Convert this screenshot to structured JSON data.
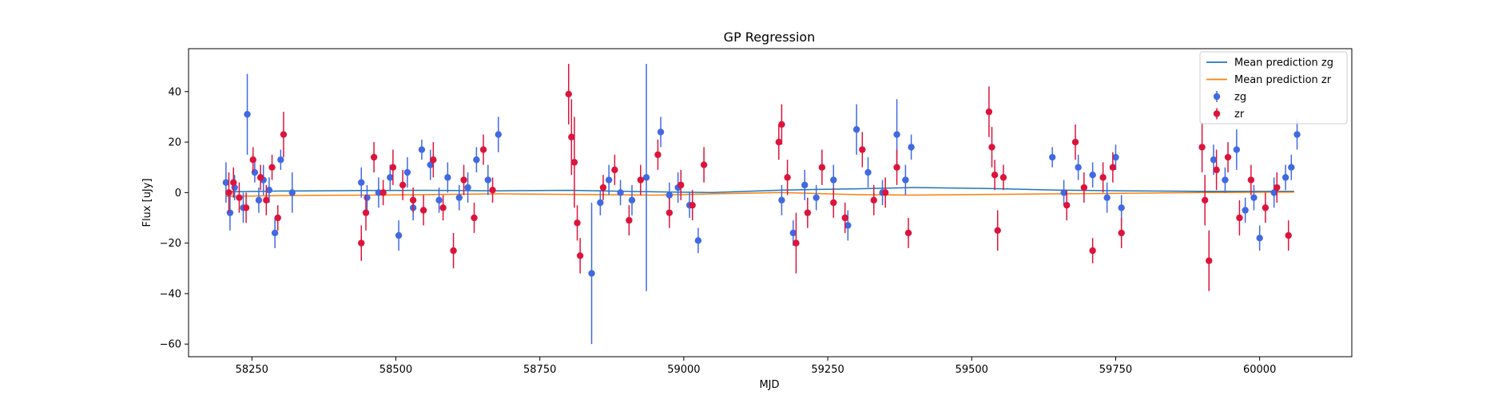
{
  "chart_data": {
    "type": "scatter",
    "title": "GP Regression",
    "xlabel": "MJD",
    "ylabel": "Flux [uJy]",
    "xlim": [
      58140,
      60160
    ],
    "ylim": [
      -65,
      57
    ],
    "xticks": [
      58250,
      58500,
      58750,
      59000,
      59250,
      59500,
      59750,
      60000
    ],
    "yticks": [
      -60,
      -40,
      -20,
      0,
      20,
      40
    ],
    "grid": false,
    "legend_position": "top-right",
    "legend": [
      {
        "label": "Mean prediction zg",
        "kind": "line",
        "color": "#1f77b4"
      },
      {
        "label": "Mean prediction zr",
        "kind": "line",
        "color": "#ff7f0e"
      },
      {
        "label": "zg",
        "kind": "errorbar",
        "color": "#4169e1"
      },
      {
        "label": "zr",
        "kind": "errorbar",
        "color": "#dc143c"
      }
    ],
    "lines": [
      {
        "name": "Mean prediction zg",
        "color": "#1f77b4",
        "x": [
          58205,
          58300,
          58440,
          58550,
          58680,
          58800,
          58950,
          59050,
          59170,
          59300,
          59400,
          59530,
          59650,
          59760,
          59900,
          60060
        ],
        "y": [
          0.3,
          0.6,
          0.8,
          0.9,
          0.7,
          0.9,
          0.3,
          0.0,
          1.0,
          1.5,
          2.0,
          1.6,
          1.0,
          0.7,
          0.5,
          0.5
        ]
      },
      {
        "name": "Mean prediction zr",
        "color": "#ff7f0e",
        "x": [
          58205,
          58300,
          58440,
          58550,
          58680,
          58800,
          58950,
          59050,
          59170,
          59300,
          59400,
          59530,
          59650,
          59760,
          59900,
          60060
        ],
        "y": [
          -1.5,
          -1.2,
          -1.0,
          -0.8,
          -0.5,
          -0.7,
          -1.0,
          -0.5,
          0.0,
          -0.8,
          -1.0,
          -0.7,
          -0.5,
          -0.3,
          0.0,
          0.2
        ]
      }
    ],
    "series": [
      {
        "name": "zg",
        "color": "#4169e1",
        "x": [
          58205,
          58212,
          58220,
          58235,
          58242,
          58255,
          58262,
          58270,
          58280,
          58290,
          58300,
          58320,
          58440,
          58450,
          58470,
          58490,
          58505,
          58520,
          58530,
          58545,
          58560,
          58575,
          58590,
          58610,
          58625,
          58640,
          58660,
          58678,
          58840,
          58855,
          58870,
          58890,
          58910,
          58935,
          58960,
          58975,
          58990,
          59010,
          59025,
          59170,
          59190,
          59210,
          59230,
          59260,
          59285,
          59300,
          59320,
          59345,
          59370,
          59385,
          59395,
          59640,
          59660,
          59685,
          59710,
          59735,
          59750,
          59760,
          59920,
          59940,
          59960,
          59975,
          59990,
          60000,
          60025,
          60045,
          60055,
          60065
        ],
        "y": [
          4,
          -8,
          2,
          -6,
          31,
          8,
          -3,
          5,
          1,
          -16,
          13,
          0,
          4,
          -2,
          0,
          6,
          -17,
          8,
          -6,
          17,
          11,
          -3,
          6,
          -2,
          2,
          13,
          5,
          23,
          -32,
          -4,
          5,
          0,
          -3,
          6,
          24,
          -1,
          2,
          -5,
          -19,
          -3,
          -16,
          3,
          -2,
          5,
          -13,
          25,
          8,
          0,
          23,
          5,
          18,
          14,
          0,
          10,
          7,
          -2,
          14,
          -6,
          13,
          5,
          17,
          -7,
          -2,
          -18,
          0,
          6,
          10,
          23
        ],
        "err": [
          8,
          7,
          5,
          6,
          16,
          4,
          5,
          6,
          5,
          6,
          4,
          8,
          6,
          5,
          6,
          5,
          6,
          6,
          5,
          4,
          6,
          5,
          6,
          5,
          6,
          5,
          6,
          7,
          28,
          5,
          6,
          5,
          6,
          45,
          6,
          5,
          6,
          5,
          5,
          6,
          5,
          6,
          5,
          6,
          6,
          10,
          6,
          5,
          14,
          6,
          5,
          4,
          5,
          5,
          5,
          6,
          5,
          5,
          6,
          5,
          8,
          5,
          5,
          5,
          6,
          5,
          5,
          6
        ]
      },
      {
        "name": "zr",
        "color": "#dc143c",
        "x": [
          58210,
          58218,
          58228,
          58240,
          58252,
          58265,
          58275,
          58285,
          58295,
          58305,
          58440,
          58448,
          58462,
          58478,
          58495,
          58512,
          58530,
          58548,
          58565,
          58582,
          58600,
          58618,
          58636,
          58652,
          58668,
          58800,
          58805,
          58810,
          58815,
          58820,
          58860,
          58880,
          58905,
          58925,
          58955,
          58975,
          58995,
          59015,
          59035,
          59165,
          59170,
          59180,
          59195,
          59215,
          59240,
          59260,
          59280,
          59310,
          59330,
          59350,
          59370,
          59390,
          59530,
          59535,
          59540,
          59545,
          59555,
          59665,
          59680,
          59695,
          59710,
          59728,
          59745,
          59760,
          59900,
          59905,
          59912,
          59925,
          59945,
          59965,
          59985,
          60010,
          60030,
          60050
        ],
        "y": [
          0,
          4,
          -2,
          -6,
          13,
          6,
          -3,
          10,
          -10,
          23,
          -20,
          -8,
          14,
          0,
          10,
          3,
          -3,
          -7,
          13,
          -6,
          -23,
          5,
          -10,
          17,
          1,
          39,
          22,
          12,
          -12,
          -25,
          2,
          9,
          -11,
          5,
          15,
          -8,
          3,
          -5,
          11,
          20,
          27,
          6,
          -20,
          -8,
          10,
          -4,
          -10,
          17,
          -3,
          0,
          10,
          -16,
          32,
          18,
          7,
          -15,
          6,
          -5,
          20,
          2,
          -23,
          6,
          10,
          -16,
          18,
          -3,
          -27,
          9,
          14,
          -10,
          5,
          -6,
          2,
          -17
        ],
        "err": [
          8,
          6,
          6,
          6,
          5,
          5,
          6,
          5,
          5,
          9,
          7,
          7,
          6,
          5,
          7,
          6,
          5,
          6,
          7,
          5,
          7,
          6,
          6,
          6,
          5,
          12,
          15,
          18,
          7,
          7,
          5,
          6,
          6,
          6,
          6,
          6,
          6,
          6,
          7,
          7,
          8,
          7,
          12,
          6,
          7,
          6,
          6,
          7,
          6,
          6,
          7,
          6,
          10,
          8,
          6,
          8,
          5,
          6,
          7,
          6,
          5,
          6,
          6,
          6,
          10,
          10,
          12,
          8,
          6,
          7,
          6,
          6,
          6,
          6
        ]
      }
    ]
  }
}
